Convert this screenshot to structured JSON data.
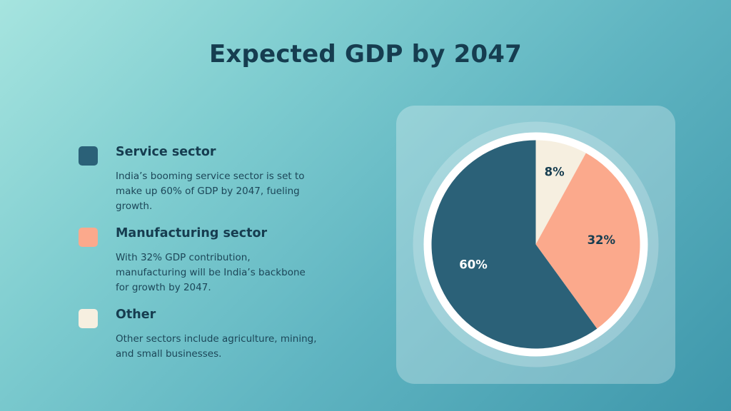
{
  "title": "Expected GDP by 2047",
  "legend": [
    {
      "label": "Service sector",
      "description": "India’s booming service sector is set to make up 60% of GDP by 2047, fueling growth.",
      "color": "#2b6178"
    },
    {
      "label": "Manufacturing sector",
      "description": "With 32% GDP contribution, manufacturing will be India’s backbone for growth by 2047.",
      "color": "#fba98c"
    },
    {
      "label": "Other",
      "description": "Other sectors include agriculture, mining, and small businesses.",
      "color": "#f6efe0"
    }
  ],
  "chart_data": {
    "type": "pie",
    "title": "Expected GDP by 2047",
    "categories": [
      "Other",
      "Manufacturing sector",
      "Service sector"
    ],
    "values": [
      8,
      32,
      60
    ],
    "labels": [
      "8%",
      "32%",
      "60%"
    ],
    "colors": [
      "#f6efe0",
      "#fba98c",
      "#2b6178"
    ],
    "label_colors": [
      "#163d50",
      "#163d50",
      "#ffffff"
    ],
    "start": "12 o'clock, clockwise"
  }
}
